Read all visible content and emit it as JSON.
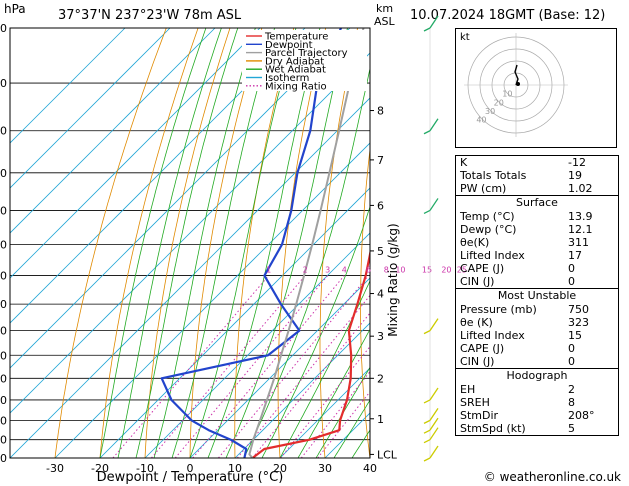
{
  "header": {
    "hpa_label": "hPa",
    "location": "37°37'N  237°23'W  78m  ASL",
    "km_label": "km",
    "asl_label": "ASL",
    "datetime": "10.07.2024  18GMT  (Base: 12)"
  },
  "chart_data": {
    "type": "skew-t",
    "xlabel": "Dewpoint / Temperature (°C)",
    "ylabel_right": "Mixing Ratio (g/kg)",
    "pressure_ticks": [
      300,
      350,
      400,
      450,
      500,
      550,
      600,
      650,
      700,
      750,
      800,
      850,
      900,
      950,
      1000
    ],
    "temp_ticks": [
      -30,
      -20,
      -10,
      0,
      10,
      20,
      30,
      40
    ],
    "xlim": [
      -40,
      40
    ],
    "ylim_hpa": [
      1000,
      300
    ],
    "km_ticks": [
      {
        "label": "8",
        "p": 378
      },
      {
        "label": "7",
        "p": 434
      },
      {
        "label": "6",
        "p": 493
      },
      {
        "label": "5",
        "p": 560
      },
      {
        "label": "4",
        "p": 631
      },
      {
        "label": "3",
        "p": 711
      },
      {
        "label": "2",
        "p": 800
      },
      {
        "label": "1",
        "p": 896
      },
      {
        "label": "LCL",
        "p": 990
      }
    ],
    "mixing_ratio_labels": [
      "1",
      "2",
      "3",
      "4",
      "6",
      "8",
      "10",
      "15",
      "20",
      "25"
    ],
    "mixing_ratio_values": [
      1,
      2,
      3,
      4,
      6,
      8,
      10,
      15,
      20,
      25
    ],
    "legend": [
      {
        "name": "Temperature",
        "color": "#e32c2c",
        "style": "solid"
      },
      {
        "name": "Dewpoint",
        "color": "#2244cc",
        "style": "solid"
      },
      {
        "name": "Parcel Trajectory",
        "color": "#a0a0a0",
        "style": "solid"
      },
      {
        "name": "Dry Adiabat",
        "color": "#e08a00",
        "style": "solid"
      },
      {
        "name": "Wet Adiabat",
        "color": "#22aa22",
        "style": "solid"
      },
      {
        "name": "Isotherm",
        "color": "#22a6d6",
        "style": "solid"
      },
      {
        "name": "Mixing Ratio",
        "color": "#cc33aa",
        "style": "dotted"
      }
    ],
    "series": [
      {
        "name": "Temperature",
        "points": [
          [
            1000,
            13.9
          ],
          [
            975,
            14.5
          ],
          [
            950,
            22.5
          ],
          [
            925,
            27.0
          ],
          [
            900,
            25.0
          ],
          [
            850,
            22.0
          ],
          [
            800,
            18.0
          ],
          [
            750,
            13.0
          ],
          [
            700,
            7.0
          ],
          [
            650,
            3.0
          ],
          [
            600,
            -1.5
          ],
          [
            550,
            -7.0
          ],
          [
            500,
            -13.5
          ],
          [
            450,
            -21.5
          ],
          [
            400,
            -29.5
          ],
          [
            350,
            -38.5
          ],
          [
            300,
            -47.5
          ]
        ]
      },
      {
        "name": "Dewpoint",
        "points": [
          [
            1000,
            12.1
          ],
          [
            975,
            10.5
          ],
          [
            950,
            5.0
          ],
          [
            925,
            -2.0
          ],
          [
            900,
            -8.0
          ],
          [
            850,
            -17.0
          ],
          [
            800,
            -24.0
          ],
          [
            750,
            -5.5
          ],
          [
            700,
            -4.0
          ],
          [
            650,
            -14.0
          ],
          [
            600,
            -24.0
          ],
          [
            550,
            -27.0
          ],
          [
            500,
            -32.5
          ],
          [
            450,
            -39.5
          ],
          [
            400,
            -46.0
          ],
          [
            350,
            -55.0
          ],
          [
            300,
            -62.0
          ]
        ]
      },
      {
        "name": "Parcel Trajectory",
        "points": [
          [
            1000,
            13.9
          ],
          [
            990,
            12.4
          ],
          [
            950,
            10.0
          ],
          [
            900,
            7.2
          ],
          [
            850,
            4.2
          ],
          [
            800,
            1.0
          ],
          [
            750,
            -2.6
          ],
          [
            700,
            -6.4
          ],
          [
            650,
            -10.6
          ],
          [
            600,
            -15.2
          ],
          [
            550,
            -20.3
          ],
          [
            500,
            -26.0
          ],
          [
            450,
            -32.4
          ],
          [
            400,
            -39.6
          ],
          [
            350,
            -47.8
          ],
          [
            300,
            -57.0
          ]
        ]
      }
    ],
    "wind_barbs": [
      {
        "p": 1000,
        "color": "#cccc00"
      },
      {
        "p": 950,
        "color": "#cccc00"
      },
      {
        "p": 925,
        "color": "#cccc00"
      },
      {
        "p": 900,
        "color": "#cccc00"
      },
      {
        "p": 850,
        "color": "#cccc00"
      },
      {
        "p": 700,
        "color": "#cccc00"
      },
      {
        "p": 500,
        "color": "#22aa66"
      },
      {
        "p": 400,
        "color": "#22aa66"
      },
      {
        "p": 300,
        "color": "#22aa66"
      }
    ]
  },
  "hodograph": {
    "unit_label": "kt",
    "ring_labels": [
      "10",
      "20",
      "30",
      "40"
    ]
  },
  "indices": {
    "top": [
      {
        "label": "K",
        "value": "-12"
      },
      {
        "label": "Totals Totals",
        "value": "19"
      },
      {
        "label": "PW (cm)",
        "value": "1.02"
      }
    ],
    "surface_title": "Surface",
    "surface": [
      {
        "label": "Temp (°C)",
        "value": "13.9"
      },
      {
        "label": "Dewp (°C)",
        "value": "12.1"
      },
      {
        "label": "θe(K)",
        "value": "311"
      },
      {
        "label": "Lifted Index",
        "value": "17"
      },
      {
        "label": "CAPE (J)",
        "value": "0"
      },
      {
        "label": "CIN (J)",
        "value": "0"
      }
    ],
    "unstable_title": "Most Unstable",
    "unstable": [
      {
        "label": "Pressure (mb)",
        "value": "750"
      },
      {
        "label": "θe (K)",
        "value": "323"
      },
      {
        "label": "Lifted Index",
        "value": "15"
      },
      {
        "label": "CAPE (J)",
        "value": "0"
      },
      {
        "label": "CIN (J)",
        "value": "0"
      }
    ],
    "hodo_title": "Hodograph",
    "hodo": [
      {
        "label": "EH",
        "value": "2"
      },
      {
        "label": "SREH",
        "value": "8"
      },
      {
        "label": "StmDir",
        "value": "208°"
      },
      {
        "label": "StmSpd (kt)",
        "value": "5"
      }
    ]
  },
  "footer": "© weatheronline.co.uk"
}
